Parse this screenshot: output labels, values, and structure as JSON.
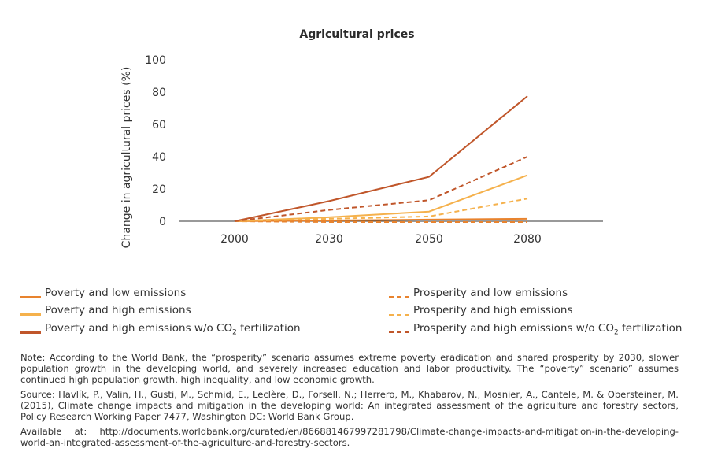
{
  "chart_data": {
    "type": "line",
    "title": "Agricultural prices",
    "xlabel": "",
    "ylabel": "Change in agricultural prices (%)",
    "categories": [
      "2000",
      "2030",
      "2050",
      "2080"
    ],
    "ylim": [
      0,
      100
    ],
    "yticks": [
      0,
      20,
      40,
      60,
      80,
      100
    ],
    "grid": false,
    "legend_position": "bottom",
    "series": [
      {
        "name": "Poverty and low emissions",
        "label_main": "Poverty and low emissions",
        "label_sub": "",
        "label_tail": "",
        "style": "solid",
        "color": "#e8832e",
        "values": [
          0,
          0.5,
          1,
          1.5
        ]
      },
      {
        "name": "Poverty and high emissions",
        "label_main": "Poverty and high emissions",
        "label_sub": "",
        "label_tail": "",
        "style": "solid",
        "color": "#f5b14c",
        "values": [
          0,
          2.5,
          6,
          28.5
        ]
      },
      {
        "name": "Poverty and high emissions w/o CO2 fertilization",
        "label_main": "Poverty and high emissions w/o CO",
        "label_sub": "2",
        "label_tail": " fertilization",
        "style": "solid",
        "color": "#c0562a",
        "values": [
          0,
          12.5,
          27.5,
          77.5
        ]
      },
      {
        "name": "Prosperity and low emissions",
        "label_main": "Prosperity and low emissions",
        "label_sub": "",
        "label_tail": "",
        "style": "dashed",
        "color": "#e8832e",
        "values": [
          0,
          -0.5,
          -0.5,
          -0.5
        ]
      },
      {
        "name": "Prosperity and high emissions",
        "label_main": "Prosperity and high emissions",
        "label_sub": "",
        "label_tail": "",
        "style": "dashed",
        "color": "#f5b14c",
        "values": [
          0,
          1.5,
          3,
          14
        ]
      },
      {
        "name": "Prosperity and high emissions w/o CO2 fertilization",
        "label_main": "Prosperity and high emissions w/o CO",
        "label_sub": "2",
        "label_tail": " fertilization",
        "style": "dashed",
        "color": "#c0562a",
        "values": [
          0,
          7,
          13,
          40
        ]
      }
    ]
  },
  "notes": {
    "note": "Note:  According to the World Bank, the “prosperity” scenario assumes extreme poverty eradication and shared prosperity by 2030, slower population growth in the developing world, and severely increased education and labor productivity. The “poverty” scenario” assumes continued high population growth, high inequality, and low economic growth.",
    "source": "Source: Havlík, P., Valin, H., Gusti, M., Schmid, E., Leclère, D., Forsell, N.; Herrero, M., Khabarov, N., Mosnier, A., Cantele, M. & Obersteiner, M. (2015), Climate change impacts and mitigation in the developing world: An integrated assessment of the agriculture and forestry sectors, Policy Research Working Paper 7477, Washington DC: World Bank Group.",
    "available": "Available at: http://documents.worldbank.org/curated/en/866881467997281798/Climate-change-impacts-and-mitigation-in-the-developing-world-an-integrated-assessment-of-the-agriculture-and-forestry-sectors."
  }
}
